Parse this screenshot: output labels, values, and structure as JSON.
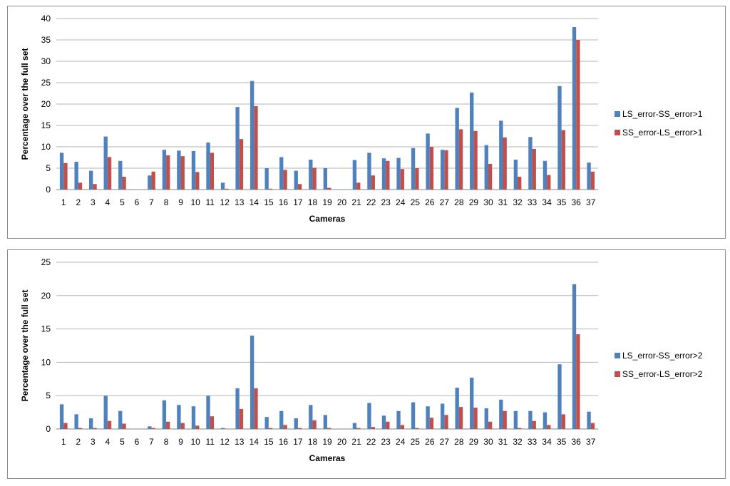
{
  "chart_data": [
    {
      "type": "bar",
      "xlabel": "Cameras",
      "ylabel": "Percentage over the full set",
      "ylim": [
        0,
        40
      ],
      "yticks": [
        0,
        5,
        10,
        15,
        20,
        25,
        30,
        35,
        40
      ],
      "grid": "horizontal",
      "legend_position": "right",
      "categories": [
        "1",
        "2",
        "3",
        "4",
        "5",
        "6",
        "7",
        "8",
        "9",
        "10",
        "11",
        "12",
        "13",
        "14",
        "15",
        "16",
        "17",
        "18",
        "19",
        "20",
        "21",
        "22",
        "23",
        "24",
        "25",
        "26",
        "27",
        "28",
        "29",
        "30",
        "31",
        "32",
        "33",
        "34",
        "35",
        "36",
        "37"
      ],
      "series": [
        {
          "name": "LS_error-SS_error>1",
          "color": "#4f81bd",
          "values": [
            8.6,
            6.5,
            4.4,
            12.4,
            6.7,
            0,
            3.3,
            9.3,
            9.1,
            9.0,
            11.0,
            1.6,
            19.3,
            25.4,
            5.0,
            7.6,
            4.4,
            7.0,
            5.0,
            0,
            6.9,
            8.6,
            7.3,
            7.4,
            9.7,
            13.1,
            9.3,
            19.1,
            22.7,
            10.4,
            16.1,
            7.0,
            12.3,
            6.7,
            24.2,
            38.0,
            6.3
          ]
        },
        {
          "name": "SS_error-LS_error>1",
          "color": "#c0504d",
          "values": [
            6.2,
            1.6,
            1.3,
            7.6,
            3.0,
            0,
            4.2,
            8.0,
            7.8,
            4.1,
            8.6,
            0.2,
            11.8,
            19.5,
            0.2,
            4.6,
            1.3,
            5.1,
            0.4,
            0,
            1.6,
            3.3,
            6.7,
            4.8,
            5.0,
            10.0,
            9.2,
            14.1,
            13.7,
            6.0,
            12.2,
            3.0,
            9.5,
            3.4,
            13.9,
            35.0,
            4.2
          ]
        }
      ]
    },
    {
      "type": "bar",
      "xlabel": "Cameras",
      "ylabel": "Percentage over the full set",
      "ylim": [
        0,
        25
      ],
      "yticks": [
        0,
        5,
        10,
        15,
        20,
        25
      ],
      "grid": "horizontal",
      "legend_position": "right",
      "categories": [
        "1",
        "2",
        "3",
        "4",
        "5",
        "6",
        "7",
        "8",
        "9",
        "10",
        "11",
        "12",
        "13",
        "14",
        "15",
        "16",
        "17",
        "18",
        "19",
        "20",
        "21",
        "22",
        "23",
        "24",
        "25",
        "26",
        "27",
        "28",
        "29",
        "30",
        "31",
        "32",
        "33",
        "34",
        "35",
        "36",
        "37"
      ],
      "series": [
        {
          "name": "LS_error-SS_error>2",
          "color": "#4f81bd",
          "values": [
            3.7,
            2.2,
            1.6,
            5.0,
            2.7,
            0,
            0.4,
            4.3,
            3.6,
            3.4,
            5.0,
            0.15,
            6.1,
            14.0,
            1.8,
            2.7,
            1.6,
            3.6,
            2.1,
            0,
            0.9,
            3.9,
            2.0,
            2.7,
            4.0,
            3.4,
            3.8,
            6.2,
            7.7,
            3.1,
            4.4,
            2.7,
            2.7,
            2.5,
            9.7,
            21.7,
            2.6
          ]
        },
        {
          "name": "SS_error-LS_error>2",
          "color": "#c0504d",
          "values": [
            0.9,
            0.15,
            0.15,
            1.2,
            0.8,
            0,
            0.15,
            1.1,
            0.9,
            0.5,
            1.9,
            0.05,
            3.0,
            6.1,
            0.15,
            0.6,
            0.15,
            1.3,
            0.15,
            0,
            0.15,
            0.3,
            1.1,
            0.6,
            0.15,
            1.7,
            2.1,
            3.3,
            3.2,
            1.1,
            2.7,
            0.15,
            1.2,
            0.6,
            2.2,
            14.2,
            0.9
          ]
        }
      ]
    }
  ]
}
